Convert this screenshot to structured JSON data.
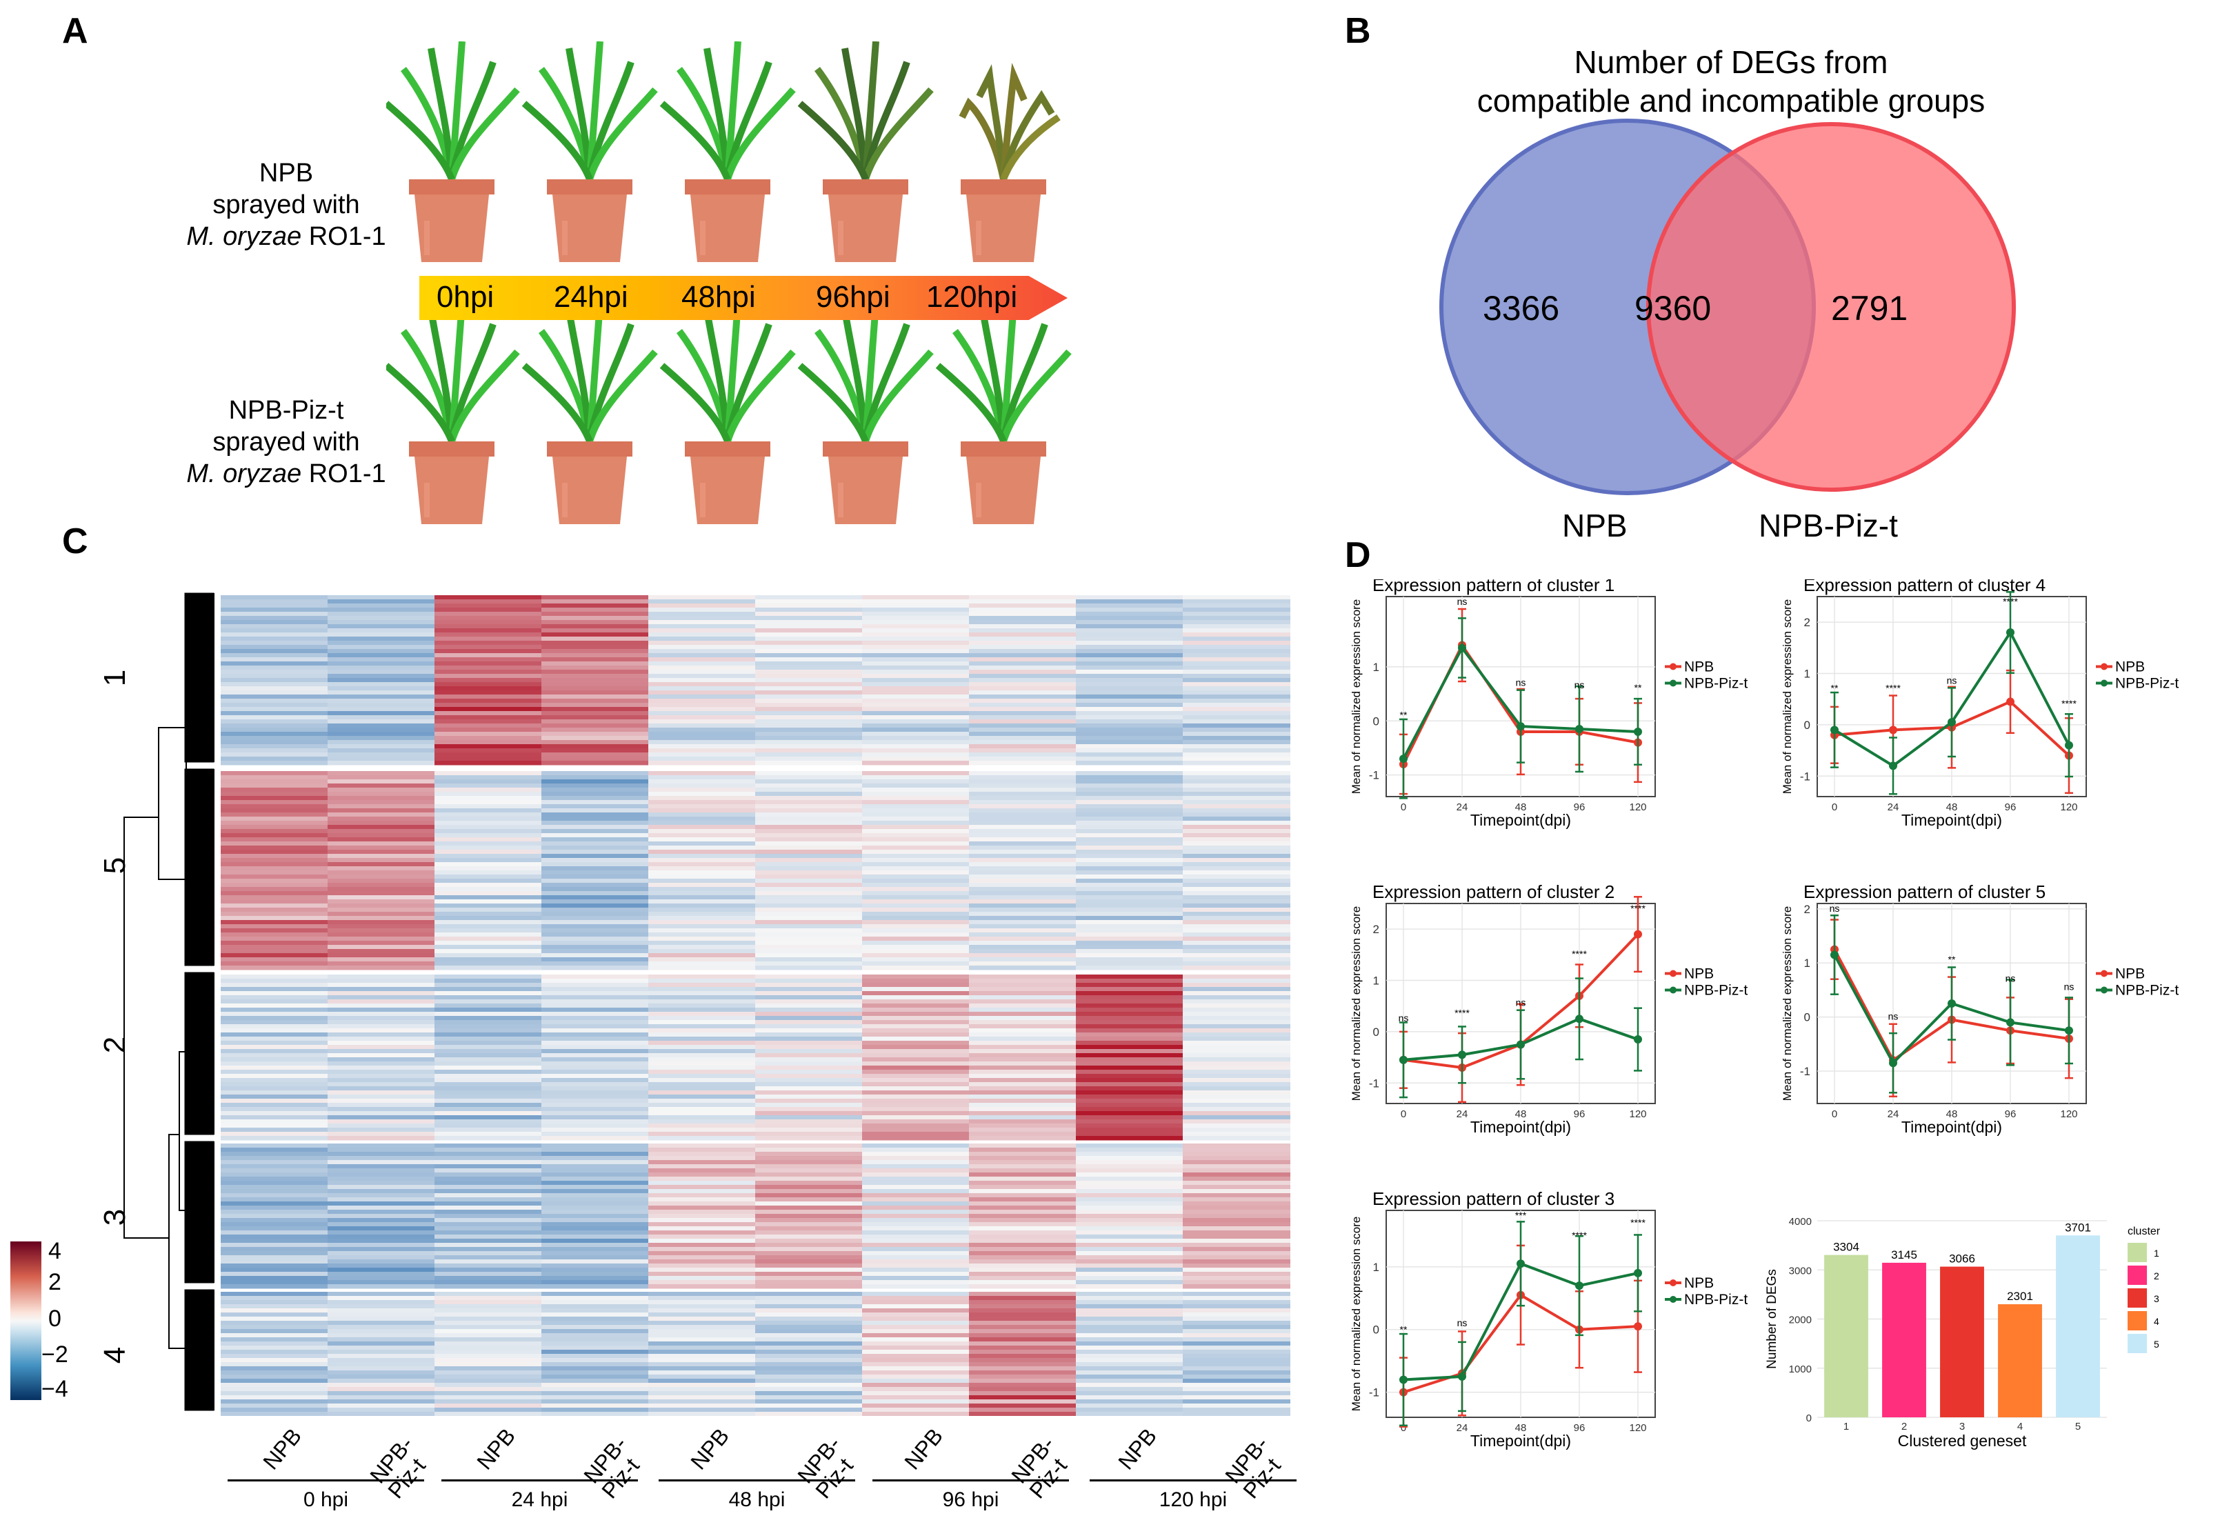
{
  "panelA": {
    "letter": "A",
    "row1_label": [
      "NPB",
      "sprayed with"
    ],
    "row1_species": "M. oryzae",
    "row1_strain": " RO1-1",
    "row2_label": [
      "NPB-Piz-t",
      "sprayed with"
    ],
    "row2_species": "M. oryzae",
    "row2_strain": " RO1-1",
    "timepoints": [
      "0hpi",
      "24hpi",
      "48hpi",
      "96hpi",
      "120hpi"
    ],
    "colors": {
      "pot": "#e0866a",
      "pot_rim": "#d77459",
      "leaf": "#3bbf3a",
      "leaf_dark": "#2f8f2c",
      "leaf_dry": "#6b7a2a"
    }
  },
  "panelB": {
    "letter": "B",
    "title_line1": "Number of DEGs from",
    "title_line2": "compatible and incompatible groups",
    "left_only": "3366",
    "overlap": "9360",
    "right_only": "2791",
    "left_label": "NPB",
    "right_label": "NPB-Piz-t",
    "colors": {
      "left": "#7f8fd0",
      "right": "#ff7a80"
    }
  },
  "panelC": {
    "letter": "C",
    "cluster_labels": [
      "1",
      "5",
      "2",
      "3",
      "4"
    ],
    "columns": [
      "NPB",
      "NPB-Piz-t",
      "NPB",
      "NPB-Piz-t",
      "NPB",
      "NPB-Piz-t",
      "NPB",
      "NPB-Piz-t",
      "NPB",
      "NPB-Piz-t"
    ],
    "column_display": [
      [
        "NPB"
      ],
      [
        "NPB-",
        "Piz-t"
      ],
      [
        "NPB"
      ],
      [
        "NPB-",
        "Piz-t"
      ],
      [
        "NPB"
      ],
      [
        "NPB-",
        "Piz-t"
      ],
      [
        "NPB"
      ],
      [
        "NPB-",
        "Piz-t"
      ],
      [
        "NPB"
      ],
      [
        "NPB-",
        "Piz-t"
      ]
    ],
    "groups": [
      "0 hpi",
      "24 hpi",
      "48 hpi",
      "96 hpi",
      "120 hpi"
    ],
    "legend_values": [
      "4",
      "2",
      "0",
      "−2",
      "−4"
    ],
    "cluster_block_means": [
      [
        -0.8,
        -0.9,
        1.6,
        1.4,
        -0.2,
        -0.1,
        -0.2,
        -0.2,
        -0.6,
        -0.4
      ],
      [
        1.2,
        1.1,
        -0.4,
        -0.9,
        -0.2,
        -0.1,
        -0.2,
        -0.3,
        -0.5,
        -0.3
      ],
      [
        -0.5,
        -0.4,
        -0.7,
        -0.5,
        -0.2,
        -0.2,
        0.6,
        0.3,
        1.8,
        -0.2
      ],
      [
        -0.9,
        -0.9,
        -0.8,
        -0.9,
        0.5,
        0.8,
        0.0,
        0.7,
        0.0,
        0.8
      ],
      [
        -0.6,
        -0.5,
        -0.3,
        -0.7,
        -0.5,
        -0.6,
        0.2,
        1.4,
        -0.5,
        -0.6
      ]
    ]
  },
  "panelD": {
    "letter": "D",
    "chart_data": [
      {
        "type": "line",
        "title": "Expression pattern of cluster 1",
        "xlabel": "Timepoint(dpi)",
        "ylabel": "Mean of normalized expression score",
        "x": [
          0,
          24,
          48,
          96,
          120
        ],
        "ylim": [
          -1.4,
          2.3
        ],
        "yticks": [
          -1,
          0,
          1
        ],
        "series": [
          {
            "name": "NPB",
            "values": [
              -0.8,
              1.4,
              -0.2,
              -0.2,
              -0.4
            ]
          },
          {
            "name": "NPB-Piz-t",
            "values": [
              -0.7,
              1.35,
              -0.1,
              -0.15,
              -0.2
            ]
          }
        ],
        "annotations": [
          "**",
          "ns",
          "ns",
          "ns",
          "**"
        ]
      },
      {
        "type": "line",
        "title": "Expression pattern of cluster 4",
        "xlabel": "Timepoint(dpi)",
        "ylabel": "Mean of normalized expression score",
        "x": [
          0,
          24,
          48,
          96,
          120
        ],
        "ylim": [
          -1.4,
          2.5
        ],
        "yticks": [
          -1,
          0,
          1,
          2
        ],
        "series": [
          {
            "name": "NPB",
            "values": [
              -0.2,
              -0.1,
              -0.05,
              0.45,
              -0.6
            ]
          },
          {
            "name": "NPB-Piz-t",
            "values": [
              -0.1,
              -0.8,
              0.05,
              1.8,
              -0.4
            ]
          }
        ],
        "annotations": [
          "**",
          "****",
          "ns",
          "****",
          "****"
        ]
      },
      {
        "type": "line",
        "title": "Expression pattern of cluster 2",
        "xlabel": "Timepoint(dpi)",
        "ylabel": "Mean of normalized expression score",
        "x": [
          0,
          24,
          48,
          96,
          120
        ],
        "ylim": [
          -1.4,
          2.5
        ],
        "yticks": [
          -1,
          0,
          1,
          2
        ],
        "series": [
          {
            "name": "NPB",
            "values": [
              -0.55,
              -0.7,
              -0.25,
              0.7,
              1.9
            ]
          },
          {
            "name": "NPB-Piz-t",
            "values": [
              -0.55,
              -0.45,
              -0.25,
              0.25,
              -0.15
            ]
          }
        ],
        "annotations": [
          "ns",
          "****",
          "ns",
          "****",
          "****"
        ]
      },
      {
        "type": "line",
        "title": "Expression pattern of cluster 5",
        "xlabel": "Timepoint(dpi)",
        "ylabel": "Mean of normalized expression score",
        "x": [
          0,
          24,
          48,
          96,
          120
        ],
        "ylim": [
          -1.6,
          2.1
        ],
        "yticks": [
          -1,
          0,
          1,
          2
        ],
        "series": [
          {
            "name": "NPB",
            "values": [
              1.25,
              -0.8,
              -0.05,
              -0.25,
              -0.4
            ]
          },
          {
            "name": "NPB-Piz-t",
            "values": [
              1.15,
              -0.85,
              0.25,
              -0.1,
              -0.25
            ]
          }
        ],
        "annotations": [
          "ns",
          "ns",
          "**",
          "ns",
          "ns"
        ]
      },
      {
        "type": "line",
        "title": "Expression pattern of cluster 3",
        "xlabel": "Timepoint(dpi)",
        "ylabel": "Mean of normalized expression score",
        "x": [
          0,
          24,
          48,
          96,
          120
        ],
        "ylim": [
          -1.4,
          1.9
        ],
        "yticks": [
          -1,
          0,
          1
        ],
        "series": [
          {
            "name": "NPB",
            "values": [
              -1.0,
              -0.7,
              0.55,
              0.0,
              0.05
            ]
          },
          {
            "name": "NPB-Piz-t",
            "values": [
              -0.8,
              -0.75,
              1.05,
              0.7,
              0.9
            ]
          }
        ],
        "annotations": [
          "**",
          "ns",
          "***",
          "****",
          "****"
        ]
      },
      {
        "type": "bar",
        "xlabel": "Clustered geneset",
        "ylabel": "Number of DEGs",
        "categories": [
          "1",
          "2",
          "3",
          "4",
          "5"
        ],
        "values": [
          3304,
          3145,
          3066,
          2301,
          3701
        ],
        "value_labels": [
          "3304",
          "3145",
          "3066",
          "2301",
          "3701"
        ],
        "ylim": [
          0,
          4000
        ],
        "yticks": [
          "0",
          "1000",
          "2000",
          "3000",
          "4000"
        ],
        "legend_title": "cluster",
        "colors": [
          "#c5dea0",
          "#ff2f7d",
          "#e8352d",
          "#ff7b2e",
          "#c4e8f8"
        ]
      }
    ],
    "series_colors": {
      "NPB": "#e8382b",
      "NPB-Piz-t": "#157a3c"
    }
  }
}
